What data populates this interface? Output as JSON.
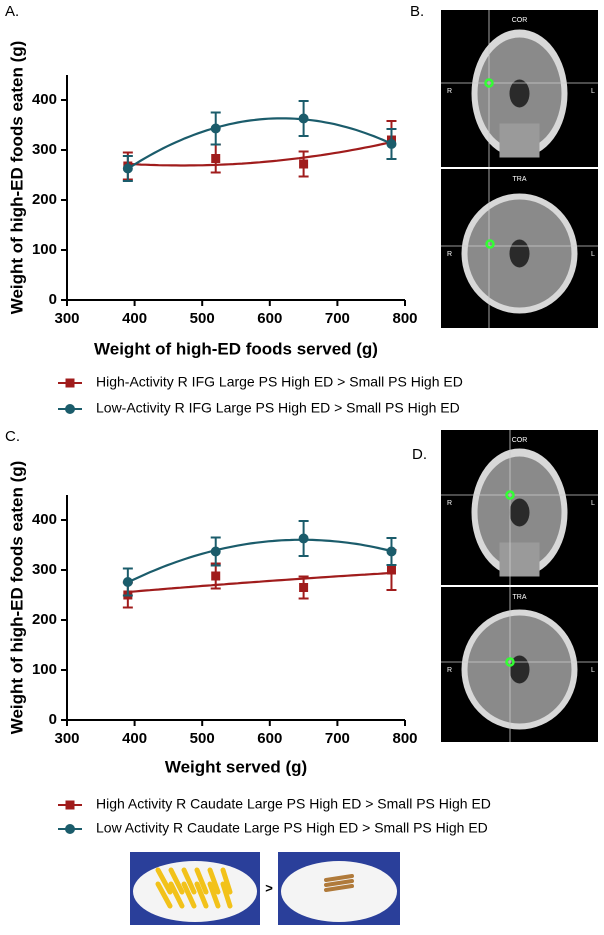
{
  "chart_data": [
    {
      "type": "line",
      "panel_label": "A.",
      "x_label": "Weight of high-ED foods served (g)",
      "y_label": "Weight of high-ED foods eaten (g)",
      "x": [
        390,
        520,
        650,
        780
      ],
      "xlim": [
        300,
        800
      ],
      "xticks": [
        300,
        400,
        500,
        600,
        700,
        800
      ],
      "ylim": [
        0,
        450
      ],
      "yticks": [
        0,
        100,
        200,
        300,
        400
      ],
      "fit": "quadratic",
      "series": [
        {
          "name": "High-Activity R IFG Large PS High ED > Small PS High ED",
          "color": "#a01c1c",
          "marker": "square",
          "values": [
            268,
            283,
            272,
            320
          ],
          "errors": [
            27,
            28,
            25,
            38
          ]
        },
        {
          "name": "Low-Activity R IFG Large PS High ED > Small PS High ED",
          "color": "#1b5c6b",
          "marker": "circle",
          "values": [
            263,
            343,
            363,
            312
          ],
          "errors": [
            25,
            32,
            35,
            30
          ]
        }
      ]
    },
    {
      "type": "line",
      "panel_label": "C.",
      "x_label": "Weight served (g)",
      "y_label": "Weight of high-ED foods eaten (g)",
      "x": [
        390,
        520,
        650,
        780
      ],
      "xlim": [
        300,
        800
      ],
      "xticks": [
        300,
        400,
        500,
        600,
        700,
        800
      ],
      "ylim": [
        0,
        450
      ],
      "yticks": [
        0,
        100,
        200,
        300,
        400
      ],
      "fit": "quadratic",
      "series": [
        {
          "name": "High Activity R Caudate Large PS High ED > Small PS High ED",
          "color": "#a01c1c",
          "marker": "square",
          "values": [
            250,
            288,
            265,
            300
          ],
          "errors": [
            25,
            25,
            22,
            40
          ]
        },
        {
          "name": "Low Activity R Caudate Large PS High ED > Small PS High ED",
          "color": "#1b5c6b",
          "marker": "circle",
          "values": [
            276,
            337,
            363,
            337
          ],
          "errors": [
            27,
            28,
            35,
            27
          ]
        }
      ]
    }
  ],
  "brain_panels": [
    {
      "label": "B.",
      "views": [
        {
          "name": "COR",
          "left": "R",
          "right": "L"
        },
        {
          "name": "TRA",
          "left": "R",
          "right": "L"
        }
      ]
    },
    {
      "label": "D.",
      "views": [
        {
          "name": "COR",
          "left": "R",
          "right": "L"
        },
        {
          "name": "TRA",
          "left": "R",
          "right": "L"
        }
      ]
    }
  ],
  "food": {
    "comparator": ">"
  }
}
